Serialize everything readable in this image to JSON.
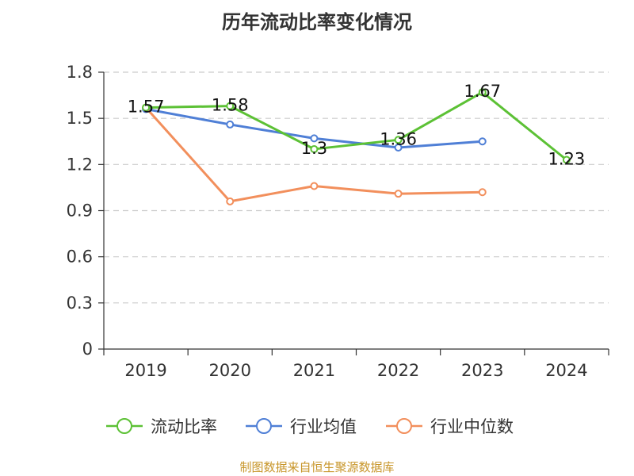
{
  "chart_data": {
    "type": "line",
    "title": "历年流动比率变化情况",
    "categories": [
      "2019",
      "2020",
      "2021",
      "2022",
      "2023",
      "2024"
    ],
    "y_ticks": [
      "0",
      "0.3",
      "0.6",
      "0.9",
      "1.2",
      "1.5",
      "1.8"
    ],
    "ylim": [
      0,
      1.8
    ],
    "grid": true,
    "legend_position": "bottom",
    "series": [
      {
        "name": "流动比率",
        "color": "#5cc135",
        "values": [
          1.57,
          1.58,
          1.3,
          1.36,
          1.67,
          1.23
        ],
        "labels": [
          "1.57",
          "1.58",
          "1.3",
          "1.36",
          "1.67",
          "1.23"
        ]
      },
      {
        "name": "行业均值",
        "color": "#4f7fd6",
        "values": [
          1.56,
          1.46,
          1.37,
          1.31,
          1.35,
          null
        ]
      },
      {
        "name": "行业中位数",
        "color": "#f28f5c",
        "values": [
          1.57,
          0.96,
          1.06,
          1.01,
          1.02,
          null
        ]
      }
    ]
  },
  "footer": {
    "source": "制图数据来自恒生聚源数据库"
  }
}
